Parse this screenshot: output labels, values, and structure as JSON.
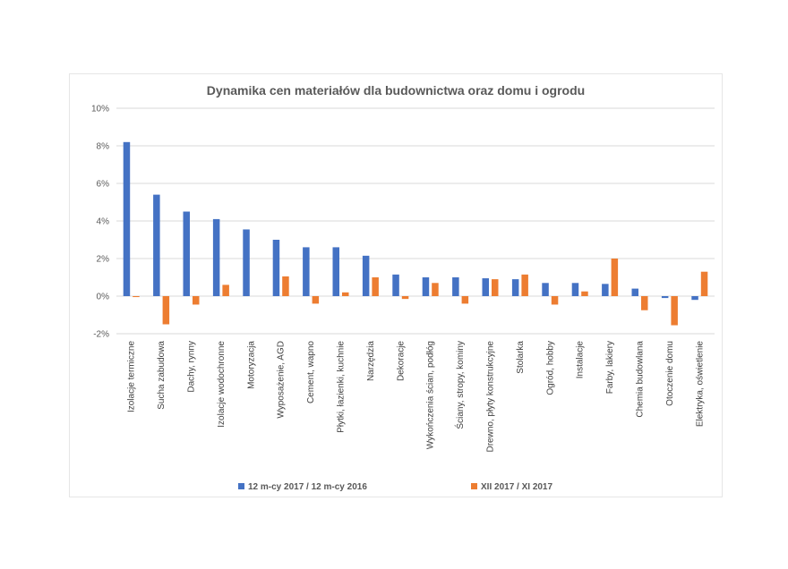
{
  "chart_data": {
    "type": "bar",
    "title": "Dynamika cen materiałów dla budownictwa oraz domu i ogrodu",
    "xlabel": "",
    "ylabel": "",
    "ylim": [
      -2,
      10
    ],
    "yticks": [
      -2,
      0,
      2,
      4,
      6,
      8,
      10
    ],
    "ytick_format": "percent",
    "grid": true,
    "legend_position": "bottom",
    "categories": [
      "Izolacje termiczne",
      "Sucha zabudowa",
      "Dachy, rynny",
      "Izolacje wodochronne",
      "Motoryzacja",
      "Wyposażenie, AGD",
      "Cement, wapno",
      "Płytki, łazienki, kuchnie",
      "Narzędzia",
      "Dekoracje",
      "Wykończenia ścian, podłóg",
      "Ściany, stropy, kominy",
      "Drewno, płyty konstrukcyjne",
      "Stolarka",
      "Ogród, hobby",
      "Instalacje",
      "Farby, lakiery",
      "Chemia budowlana",
      "Otoczenie domu",
      "Elektryka, oświetlenie"
    ],
    "series": [
      {
        "name": "12 m-cy 2017 / 12 m-cy 2016",
        "color": "#4472C4",
        "values": [
          8.2,
          5.4,
          4.5,
          4.1,
          3.55,
          3.0,
          2.6,
          2.6,
          2.15,
          1.15,
          1.0,
          1.0,
          0.95,
          0.9,
          0.7,
          0.7,
          0.65,
          0.4,
          -0.1,
          -0.2
        ]
      },
      {
        "name": "XII 2017 / XI 2017",
        "color": "#ED7D31",
        "values": [
          -0.05,
          -1.5,
          -0.45,
          0.6,
          0.0,
          1.05,
          -0.4,
          0.2,
          1.0,
          -0.15,
          0.7,
          -0.4,
          0.9,
          1.15,
          -0.45,
          0.25,
          2.0,
          -0.75,
          -1.55,
          1.3
        ]
      }
    ]
  }
}
